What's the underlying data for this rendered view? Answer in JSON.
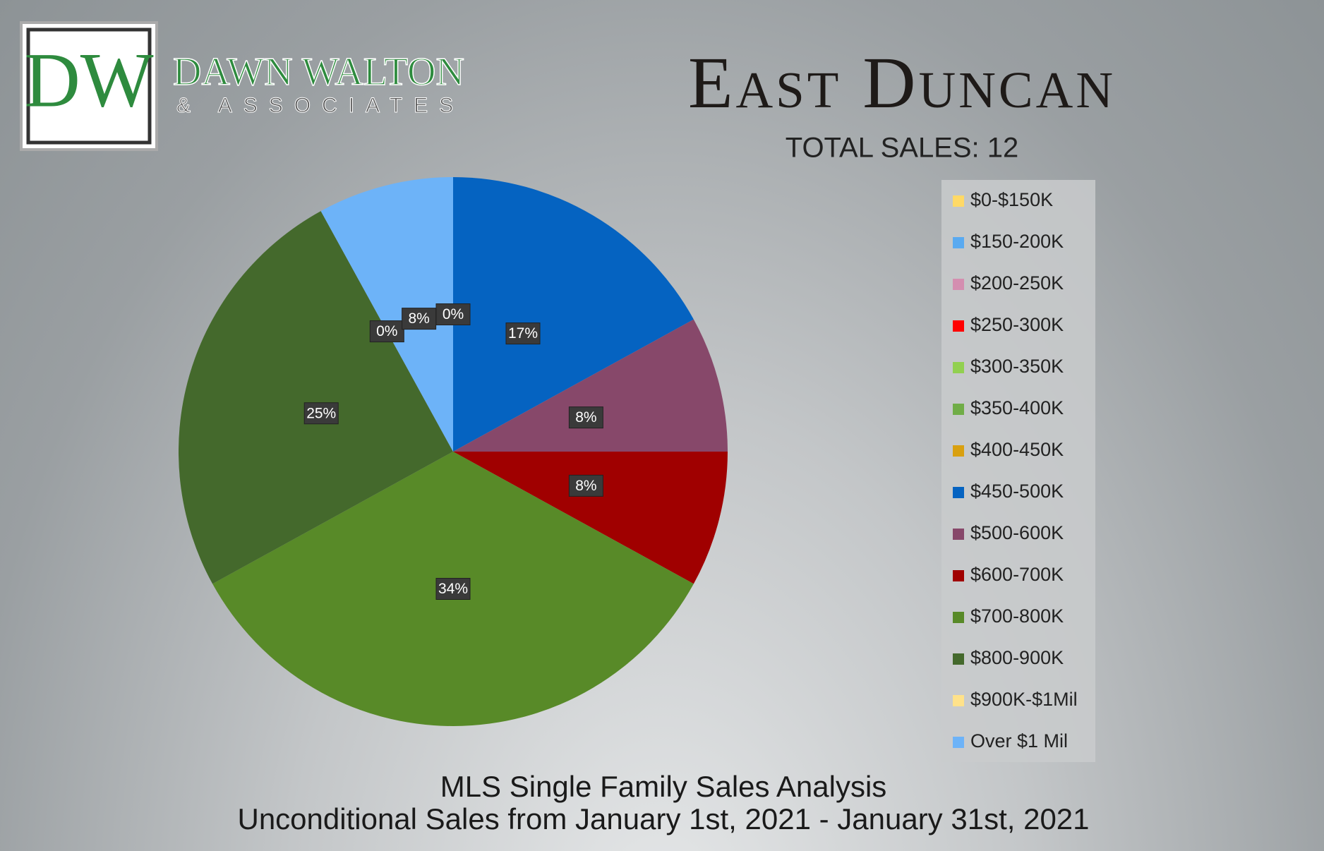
{
  "logo": {
    "monogram": "DW",
    "name": "DAWN WALTON",
    "tagline": "& ASSOCIATES"
  },
  "chart_data": {
    "type": "pie",
    "title": "East Duncan",
    "subtitle": "TOTAL SALES: 12",
    "footer": [
      "MLS Single Family Sales Analysis",
      "Unconditional Sales from January 1st, 2021 - January 31st, 2021"
    ],
    "categories": [
      "$0-$150K",
      "$150-200K",
      "$200-250K",
      "$250-300K",
      "$300-350K",
      "$350-400K",
      "$400-450K",
      "$450-500K",
      "$500-600K",
      "$600-700K",
      "$700-800K",
      "$800-900K",
      "$900K-$1Mil",
      "Over $1 Mil"
    ],
    "values": [
      0,
      0,
      0,
      0,
      0,
      0,
      0,
      17,
      8,
      8,
      34,
      25,
      0,
      8
    ],
    "value_labels": [
      "0%",
      "0%",
      "0%",
      "0%",
      "0%",
      "0%",
      "0%",
      "17%",
      "8%",
      "8%",
      "34%",
      "25%",
      "0%",
      "8%"
    ],
    "colors": [
      "#ffd966",
      "#5aaaf0",
      "#d48eb0",
      "#ff0000",
      "#92d050",
      "#70ad47",
      "#d9a010",
      "#0563c1",
      "#87486a",
      "#a00000",
      "#588a28",
      "#44692c",
      "#ffe28a",
      "#6db3f8"
    ],
    "legend": "right"
  }
}
